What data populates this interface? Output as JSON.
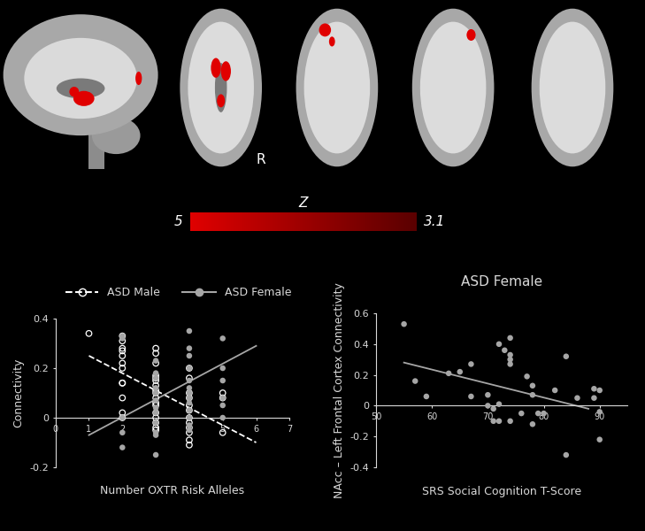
{
  "brain_maps": {
    "label": "R",
    "colorbar": {
      "title": "Z",
      "range": [
        5,
        3.1
      ],
      "ticks": [
        5,
        3.1
      ],
      "colors": [
        "#e00000",
        "#5a0000"
      ]
    }
  },
  "chart_data": [
    {
      "type": "scatter",
      "xlabel": "Number OXTR Risk Alleles",
      "ylabel": "Connectivity",
      "xlim": [
        0,
        7
      ],
      "xticks": [
        0,
        1,
        2,
        3,
        4,
        5,
        6,
        7
      ],
      "ylim": [
        -0.2,
        0.4
      ],
      "yticks": [
        -0.2,
        0,
        0.2,
        0.4
      ],
      "legend": "upper left",
      "series": [
        {
          "name": "ASD Male",
          "color": "#ffffff",
          "marker": "open_circle",
          "line_style": "dashed",
          "x": [
            1,
            2,
            2,
            2,
            2,
            2,
            2,
            2,
            2,
            2,
            2,
            2,
            2,
            3,
            3,
            3,
            3,
            3,
            3,
            3,
            3,
            3,
            3,
            3,
            3,
            3,
            3,
            3,
            3,
            3,
            4,
            4,
            4,
            4,
            4,
            4,
            4,
            4,
            4,
            4,
            4,
            4,
            5,
            5,
            5
          ],
          "values": [
            0.34,
            0.33,
            0.31,
            0.28,
            0.27,
            0.25,
            0.22,
            0.2,
            0.14,
            0.14,
            0.08,
            0.02,
            0.0,
            0.28,
            0.26,
            0.22,
            0.17,
            0.16,
            0.15,
            0.13,
            0.11,
            0.1,
            0.08,
            0.06,
            0.05,
            0.02,
            0.0,
            -0.02,
            -0.04,
            -0.05,
            0.2,
            0.16,
            0.1,
            0.08,
            0.05,
            0.03,
            0.0,
            -0.02,
            -0.04,
            -0.06,
            -0.09,
            -0.11,
            0.1,
            0.08,
            -0.06
          ],
          "trend_x": [
            1,
            6
          ],
          "trend_values": [
            0.25,
            -0.1
          ]
        },
        {
          "name": "ASD Female",
          "color": "#a6a6a6",
          "marker": "filled_circle",
          "line_style": "solid",
          "x": [
            2,
            2,
            2,
            2,
            2,
            3,
            3,
            3,
            3,
            3,
            3,
            3,
            3,
            3,
            3,
            3,
            3,
            4,
            4,
            4,
            4,
            4,
            4,
            4,
            4,
            4,
            4,
            4,
            4,
            4,
            5,
            5,
            5,
            5,
            5,
            5
          ],
          "values": [
            0.33,
            0.32,
            0.0,
            -0.06,
            -0.12,
            0.23,
            0.18,
            0.16,
            0.12,
            0.1,
            0.07,
            0.04,
            0.02,
            -0.02,
            -0.06,
            -0.07,
            -0.15,
            0.35,
            0.28,
            0.25,
            0.2,
            0.15,
            0.12,
            0.1,
            0.08,
            0.06,
            0.03,
            0.0,
            -0.03,
            -0.05,
            0.32,
            0.2,
            0.15,
            0.08,
            0.05,
            0.0
          ],
          "trend_x": [
            1,
            6
          ],
          "trend_values": [
            -0.07,
            0.29
          ]
        }
      ]
    },
    {
      "type": "scatter",
      "title": "ASD Female",
      "xlabel": "SRS Social Cognition T-Score",
      "ylabel": "NAcc – Left Frontal Cortex Connectivity",
      "xlim": [
        50,
        95
      ],
      "xticks": [
        50,
        60,
        70,
        80,
        90
      ],
      "ylim": [
        -0.4,
        0.6
      ],
      "yticks": [
        -0.4,
        -0.2,
        0,
        0.2,
        0.4,
        0.6
      ],
      "series": [
        {
          "color": "#a6a6a6",
          "marker": "filled_circle",
          "line_style": "solid",
          "x": [
            55,
            57,
            59,
            63,
            65,
            67,
            67,
            70,
            70,
            71,
            71,
            72,
            72,
            72,
            73,
            74,
            74,
            74,
            74,
            74,
            76,
            77,
            78,
            78,
            78,
            79,
            80,
            82,
            84,
            84,
            86,
            89,
            89,
            90,
            90,
            90
          ],
          "values": [
            0.53,
            0.16,
            0.06,
            0.21,
            0.22,
            0.27,
            0.06,
            0.07,
            0.0,
            -0.02,
            -0.1,
            0.4,
            0.01,
            -0.1,
            0.36,
            0.44,
            0.33,
            0.3,
            0.27,
            -0.1,
            -0.05,
            0.19,
            0.13,
            0.07,
            -0.12,
            -0.05,
            -0.05,
            0.1,
            0.32,
            -0.32,
            0.05,
            0.11,
            0.05,
            -0.04,
            -0.22,
            0.1
          ],
          "trend_x": [
            55,
            88
          ],
          "trend_values": [
            0.28,
            -0.02
          ]
        }
      ]
    }
  ]
}
